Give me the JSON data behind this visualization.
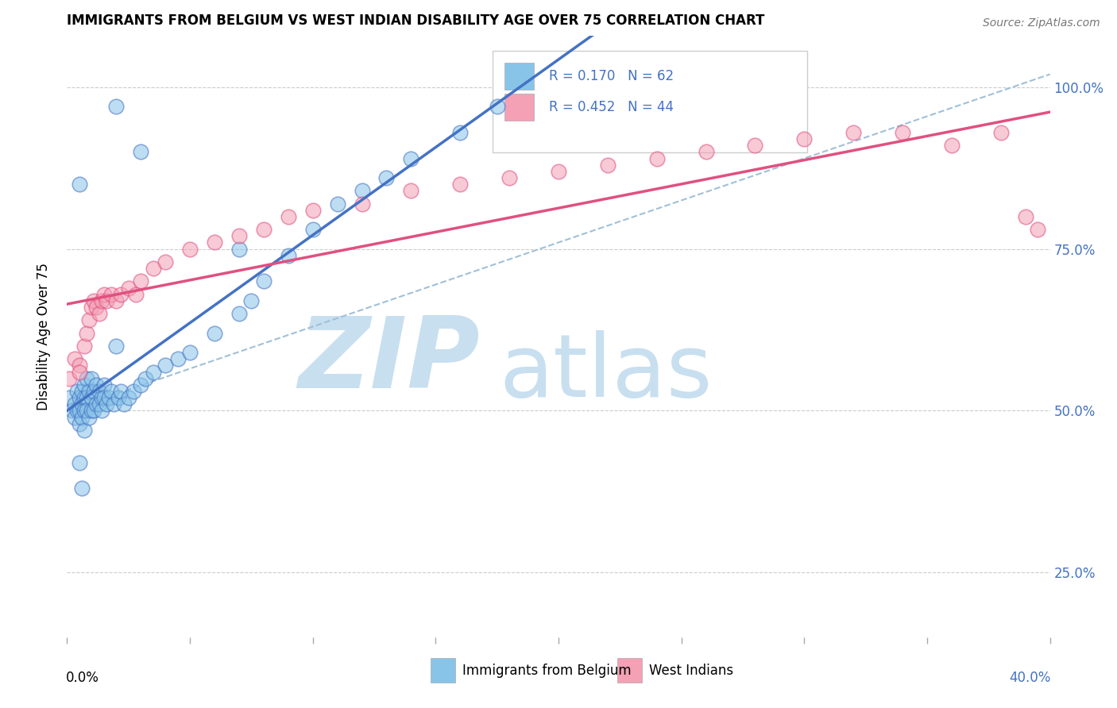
{
  "title": "IMMIGRANTS FROM BELGIUM VS WEST INDIAN DISABILITY AGE OVER 75 CORRELATION CHART",
  "source_text": "Source: ZipAtlas.com",
  "ylabel": "Disability Age Over 75",
  "y_ticks": [
    0.25,
    0.5,
    0.75,
    1.0
  ],
  "y_tick_labels": [
    "25.0%",
    "50.0%",
    "75.0%",
    "100.0%"
  ],
  "x_range": [
    0.0,
    0.4
  ],
  "y_range": [
    0.15,
    1.08
  ],
  "legend_labels": [
    "Immigrants from Belgium",
    "West Indians"
  ],
  "legend_R": [
    0.17,
    0.452
  ],
  "legend_N": [
    62,
    44
  ],
  "color_blue": "#88c4e8",
  "color_pink": "#f4a0b5",
  "color_blue_line": "#4472C4",
  "color_pink_line": "#e05080",
  "color_dashed": "#a0c0d8",
  "watermark_zip": "ZIP",
  "watermark_atlas": "atlas",
  "watermark_color_zip": "#c8dff0",
  "watermark_color_atlas": "#c8dff0",
  "blue_x": [
    0.001,
    0.002,
    0.003,
    0.003,
    0.004,
    0.004,
    0.005,
    0.005,
    0.005,
    0.006,
    0.006,
    0.006,
    0.007,
    0.007,
    0.007,
    0.007,
    0.008,
    0.008,
    0.008,
    0.009,
    0.009,
    0.01,
    0.01,
    0.01,
    0.011,
    0.011,
    0.012,
    0.012,
    0.013,
    0.013,
    0.014,
    0.014,
    0.015,
    0.015,
    0.016,
    0.017,
    0.018,
    0.019,
    0.02,
    0.021,
    0.022,
    0.023,
    0.025,
    0.027,
    0.03,
    0.032,
    0.035,
    0.04,
    0.045,
    0.05,
    0.06,
    0.07,
    0.075,
    0.08,
    0.09,
    0.1,
    0.11,
    0.12,
    0.13,
    0.14,
    0.16,
    0.175
  ],
  "blue_y": [
    0.52,
    0.5,
    0.51,
    0.49,
    0.53,
    0.5,
    0.52,
    0.5,
    0.48,
    0.53,
    0.51,
    0.49,
    0.54,
    0.52,
    0.5,
    0.47,
    0.55,
    0.52,
    0.5,
    0.53,
    0.49,
    0.55,
    0.52,
    0.5,
    0.53,
    0.5,
    0.54,
    0.51,
    0.53,
    0.51,
    0.52,
    0.5,
    0.54,
    0.52,
    0.51,
    0.52,
    0.53,
    0.51,
    0.6,
    0.52,
    0.53,
    0.51,
    0.52,
    0.53,
    0.54,
    0.55,
    0.56,
    0.57,
    0.58,
    0.59,
    0.62,
    0.65,
    0.67,
    0.7,
    0.74,
    0.78,
    0.82,
    0.84,
    0.86,
    0.89,
    0.93,
    0.97
  ],
  "blue_y_outliers_x": [
    0.02,
    0.03,
    0.005,
    0.07,
    0.005,
    0.006
  ],
  "blue_y_outliers_y": [
    0.97,
    0.9,
    0.85,
    0.75,
    0.42,
    0.38
  ],
  "pink_x": [
    0.001,
    0.003,
    0.005,
    0.005,
    0.007,
    0.008,
    0.009,
    0.01,
    0.011,
    0.012,
    0.013,
    0.014,
    0.015,
    0.016,
    0.018,
    0.02,
    0.022,
    0.025,
    0.028,
    0.03,
    0.035,
    0.04,
    0.05,
    0.06,
    0.07,
    0.08,
    0.09,
    0.1,
    0.12,
    0.14,
    0.16,
    0.18,
    0.2,
    0.22,
    0.24,
    0.26,
    0.28,
    0.3,
    0.32,
    0.34,
    0.36,
    0.38,
    0.39,
    0.395
  ],
  "pink_y": [
    0.55,
    0.58,
    0.57,
    0.56,
    0.6,
    0.62,
    0.64,
    0.66,
    0.67,
    0.66,
    0.65,
    0.67,
    0.68,
    0.67,
    0.68,
    0.67,
    0.68,
    0.69,
    0.68,
    0.7,
    0.72,
    0.73,
    0.75,
    0.76,
    0.77,
    0.78,
    0.8,
    0.81,
    0.82,
    0.84,
    0.85,
    0.86,
    0.87,
    0.88,
    0.89,
    0.9,
    0.91,
    0.92,
    0.93,
    0.93,
    0.91,
    0.93,
    0.8,
    0.78
  ],
  "x_tick_positions": [
    0.0,
    0.05,
    0.1,
    0.15,
    0.2,
    0.25,
    0.3,
    0.35,
    0.4
  ]
}
